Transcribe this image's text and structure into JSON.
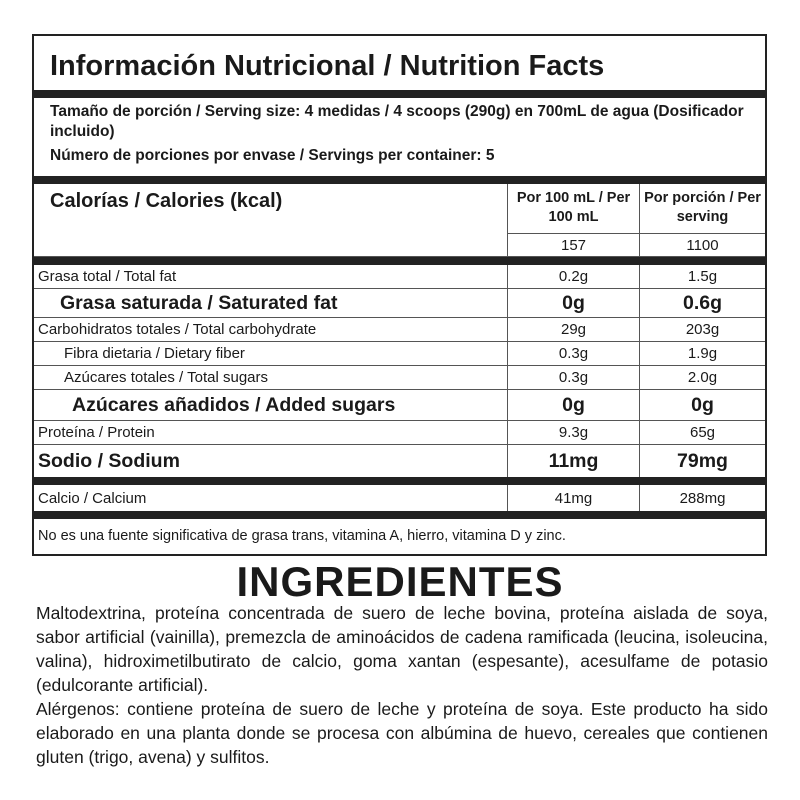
{
  "title": "Información Nutricional / Nutrition Facts",
  "serving_size": "Tamaño de porción / Serving size: 4 medidas / 4 scoops (290g) en 700mL de agua (Dosificador incluido)",
  "servings_per_container": "Número de porciones por envase / Servings per container: 5",
  "calories": {
    "label": "Calorías / Calories (kcal)",
    "col1_header": "Por 100 mL / Per 100 mL",
    "col2_header": "Por porción / Per serving",
    "per100": "157",
    "perserving": "1100"
  },
  "rows": [
    {
      "label": "Grasa total / Total fat",
      "per100": "0.2g",
      "perserving": "1.5g"
    },
    {
      "label": "Grasa saturada / Saturated fat",
      "per100": "0g",
      "perserving": "0.6g"
    },
    {
      "label": "Carbohidratos totales / Total carbohydrate",
      "per100": "29g",
      "perserving": "203g"
    },
    {
      "label": "Fibra dietaria / Dietary fiber",
      "per100": "0.3g",
      "perserving": "1.9g"
    },
    {
      "label": "Azúcares totales / Total sugars",
      "per100": "0.3g",
      "perserving": "2.0g"
    },
    {
      "label": "Azúcares añadidos / Added sugars",
      "per100": "0g",
      "perserving": "0g"
    },
    {
      "label": "Proteína / Protein",
      "per100": "9.3g",
      "perserving": "65g"
    },
    {
      "label": "Sodio / Sodium",
      "per100": "11mg",
      "perserving": "79mg"
    },
    {
      "label": "Calcio / Calcium",
      "per100": "41mg",
      "perserving": "288mg"
    }
  ],
  "footnote": "No es una fuente significativa de grasa trans, vitamina  A, hierro, vitamina D y zinc.",
  "ingredients": {
    "title": "INGREDIENTES",
    "text": "Maltodextrina, proteína concentrada de suero de leche bovina, proteína aislada de soya, sabor artificial (vainilla), premezcla de aminoácidos de cadena ramificada (leucina, isoleucina, valina), hidroximetilbutirato de calcio, goma xantan (espesante), acesulfame de potasio (edulcorante artificial).",
    "allergens": "Alérgenos: contiene proteína de suero de leche y proteína de soya. Este producto ha sido elaborado en una planta donde se procesa con albúmina de huevo, cereales que contienen gluten (trigo, avena) y sulfitos."
  }
}
